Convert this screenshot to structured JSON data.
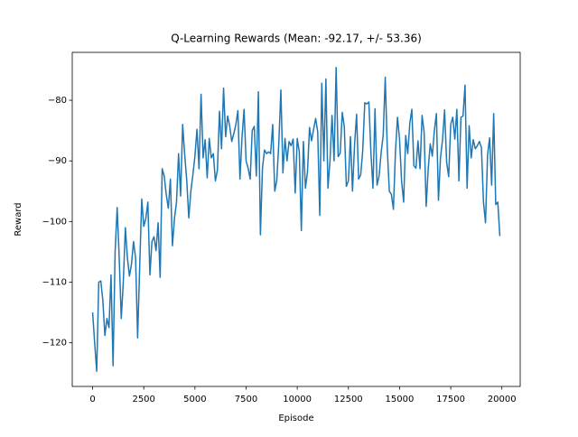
{
  "chart_data": {
    "type": "line",
    "title": "Q-Learning Rewards (Mean: -92.17, +/- 53.36)",
    "x_label": "Episode",
    "y_label": "Reward",
    "x": [
      0,
      100,
      200,
      300,
      400,
      500,
      600,
      700,
      800,
      900,
      1000,
      1100,
      1200,
      1300,
      1400,
      1500,
      1600,
      1700,
      1800,
      1900,
      2000,
      2100,
      2200,
      2300,
      2400,
      2500,
      2600,
      2700,
      2800,
      2900,
      3000,
      3100,
      3200,
      3300,
      3400,
      3500,
      3600,
      3700,
      3800,
      3900,
      4000,
      4100,
      4200,
      4300,
      4400,
      4500,
      4600,
      4700,
      4800,
      4900,
      5000,
      5100,
      5200,
      5300,
      5400,
      5500,
      5600,
      5700,
      5800,
      5900,
      6000,
      6100,
      6200,
      6300,
      6400,
      6500,
      6600,
      6700,
      6800,
      6900,
      7000,
      7100,
      7200,
      7300,
      7400,
      7500,
      7600,
      7700,
      7800,
      7900,
      8000,
      8100,
      8200,
      8300,
      8400,
      8500,
      8600,
      8700,
      8800,
      8900,
      9000,
      9100,
      9200,
      9300,
      9400,
      9500,
      9600,
      9700,
      9800,
      9900,
      10000,
      10100,
      10200,
      10300,
      10400,
      10500,
      10600,
      10700,
      10800,
      10900,
      11000,
      11100,
      11200,
      11300,
      11400,
      11500,
      11600,
      11700,
      11800,
      11900,
      12000,
      12100,
      12200,
      12300,
      12400,
      12500,
      12600,
      12700,
      12800,
      12900,
      13000,
      13100,
      13200,
      13300,
      13400,
      13500,
      13600,
      13700,
      13800,
      13900,
      14000,
      14100,
      14200,
      14300,
      14400,
      14500,
      14600,
      14700,
      14800,
      14900,
      15000,
      15100,
      15200,
      15300,
      15400,
      15500,
      15600,
      15700,
      15800,
      15900,
      16000,
      16100,
      16200,
      16300,
      16400,
      16500,
      16600,
      16700,
      16800,
      16900,
      17000,
      17100,
      17200,
      17300,
      17400,
      17500,
      17600,
      17700,
      17800,
      17900,
      18000,
      18100,
      18200,
      18300,
      18400,
      18500,
      18600,
      18700,
      18800,
      18900,
      19000,
      19100,
      19200,
      19300,
      19400,
      19500,
      19600,
      19700,
      19800,
      19900
    ],
    "series": [
      {
        "color": "#1f77b4",
        "values": [
          -115,
          -120,
          -124.7,
          -110,
          -109.8,
          -113,
          -118.8,
          -116,
          -117.5,
          -108.8,
          -123.8,
          -105,
          -97.7,
          -106,
          -116,
          -110,
          -101,
          -106,
          -109,
          -107,
          -103.3,
          -106,
          -119.2,
          -107.5,
          -96.3,
          -100.8,
          -99.5,
          -96.8,
          -108.8,
          -103.3,
          -102.5,
          -104.8,
          -100.2,
          -109.2,
          -91.3,
          -92.5,
          -95.6,
          -97.8,
          -93,
          -104,
          -99.5,
          -96.8,
          -88.8,
          -95.8,
          -84,
          -89,
          -93.2,
          -99.4,
          -95,
          -92.3,
          -89.2,
          -84.8,
          -91.3,
          -79,
          -89.5,
          -86.5,
          -92.8,
          -86.3,
          -89.5,
          -88.8,
          -93.3,
          -91.5,
          -81.8,
          -88,
          -78,
          -86,
          -82.6,
          -84.3,
          -86.8,
          -85.5,
          -84,
          -81.7,
          -93,
          -86.2,
          -81.5,
          -90,
          -91.2,
          -93,
          -85,
          -84.3,
          -92.5,
          -78.6,
          -102.2,
          -91.2,
          -88.2,
          -88.8,
          -88.5,
          -88.8,
          -84,
          -95,
          -93.2,
          -87,
          -78.3,
          -92,
          -86.3,
          -90,
          -86.8,
          -87.5,
          -86.4,
          -95.3,
          -86.3,
          -88.5,
          -101.5,
          -86.8,
          -94.5,
          -91.8,
          -84.5,
          -86.7,
          -84.8,
          -83,
          -85.2,
          -99,
          -77.2,
          -90,
          -76.5,
          -94.5,
          -90,
          -82.5,
          -90,
          -74.6,
          -89.3,
          -88.7,
          -82,
          -84.4,
          -94.2,
          -93.3,
          -86,
          -95,
          -87.4,
          -82.3,
          -93,
          -92.3,
          -88.3,
          -80.4,
          -80.6,
          -80.3,
          -88.6,
          -94.5,
          -81.4,
          -94,
          -92.5,
          -88.6,
          -85.8,
          -76.2,
          -88,
          -95,
          -95.5,
          -98,
          -88.4,
          -82.8,
          -86.5,
          -93.4,
          -96.8,
          -85.8,
          -88.8,
          -83.8,
          -81.5,
          -90.8,
          -91.2,
          -86.7,
          -91.3,
          -82.5,
          -85.3,
          -97.5,
          -91.3,
          -87.2,
          -89.2,
          -85,
          -82.2,
          -96.5,
          -89.5,
          -86.5,
          -81.6,
          -90.2,
          -92.6,
          -84,
          -82.8,
          -86.4,
          -81.5,
          -93.3,
          -82.8,
          -82.6,
          -77.5,
          -94.5,
          -84.2,
          -89.5,
          -86.5,
          -88,
          -87.5,
          -86.8,
          -87.8,
          -96.8,
          -100.2,
          -89,
          -86.2,
          -94,
          -82.2,
          -97.2,
          -96.8,
          -102.4
        ]
      }
    ],
    "xlim": [
      -995,
      20895
    ],
    "xticks": [
      0,
      2500,
      5000,
      7500,
      10000,
      12500,
      15000,
      17500,
      20000
    ],
    "ylim": [
      -127.2,
      -72.1
    ],
    "yticks": [
      {
        "value": -120,
        "label": "−120"
      },
      {
        "value": -110,
        "label": "−110"
      },
      {
        "value": -100,
        "label": "−100"
      },
      {
        "value": -90,
        "label": "−90"
      },
      {
        "value": -80,
        "label": "−80"
      }
    ],
    "grid": false
  }
}
